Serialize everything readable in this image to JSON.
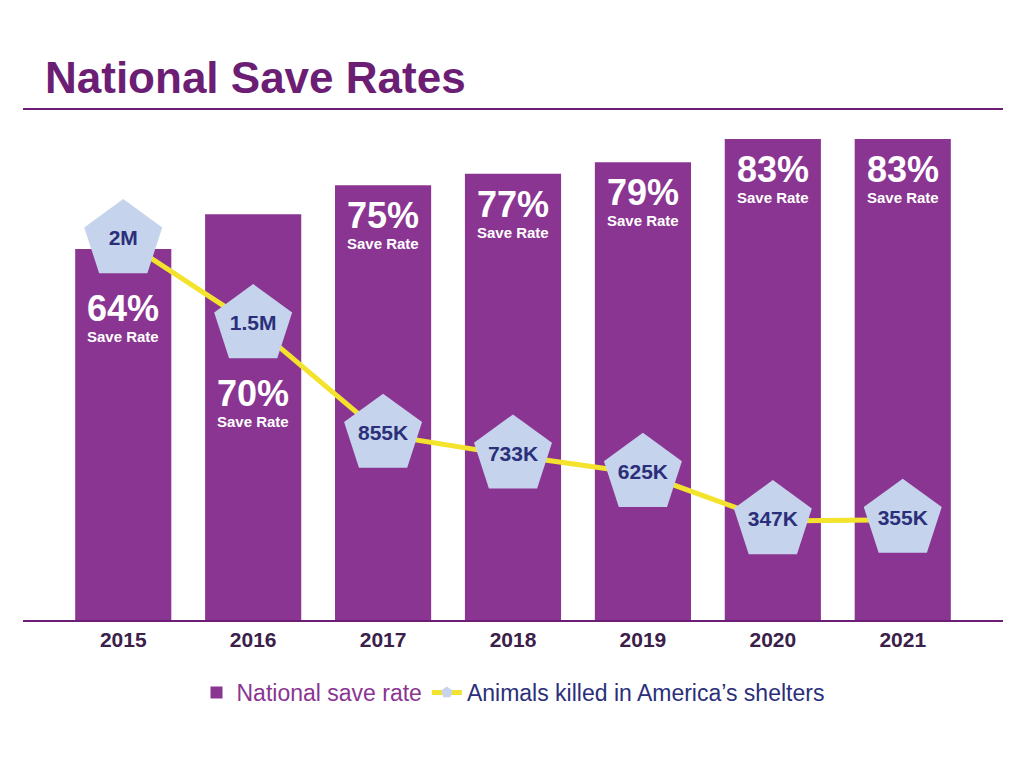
{
  "chart_data": {
    "type": "bar",
    "title": "National Save Rates",
    "categories": [
      "2015",
      "2016",
      "2017",
      "2018",
      "2019",
      "2020",
      "2021"
    ],
    "series": [
      {
        "name": "National save rate",
        "type": "bar",
        "color": "#8a3592",
        "values": [
          64,
          70,
          75,
          77,
          79,
          83,
          83
        ],
        "value_labels": [
          "64%\nSave Rate",
          "70%\nSave Rate",
          "75%\nSave Rate",
          "77%\nSave Rate",
          "79%\nSave Rate",
          "83%\nSave Rate",
          "83%\nSave Rate"
        ]
      },
      {
        "name": "Animals killed in America’s shelters",
        "type": "line",
        "axis": "y2",
        "color": "#f4e32c",
        "marker": "pentagon",
        "values": [
          2000000,
          1500000,
          855000,
          733000,
          625000,
          347000,
          355000
        ],
        "value_labels": [
          "2M",
          "1.5M",
          "855K",
          "733K",
          "625K",
          "347K",
          "355K"
        ]
      }
    ],
    "ylim": [
      0,
      88
    ],
    "yticks": [],
    "y2lim": [
      -235000,
      2765000
    ],
    "y2ticks": [],
    "data_labels": true,
    "tick_labels": "x",
    "legend": "bottom",
    "grid": false
  }
}
